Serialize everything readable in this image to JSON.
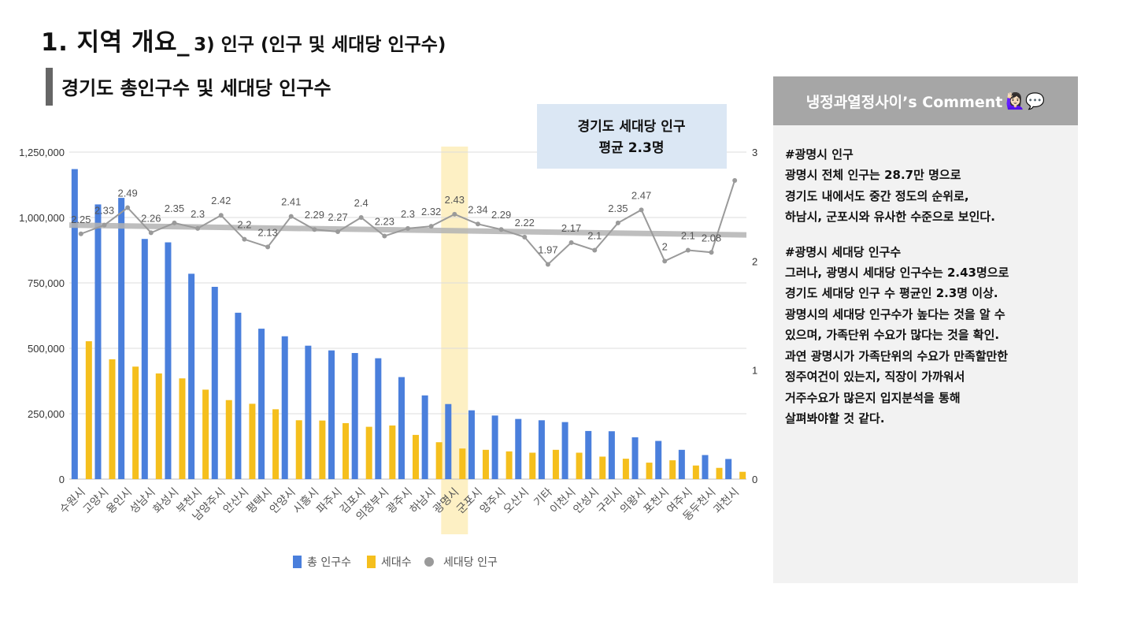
{
  "title": {
    "main": "1.  지역 개요_",
    "sub": "3) 인구 (인구 및 세대당 인구수)"
  },
  "section_title": "경기도 총인구수 및 세대당 인구수",
  "avg_box": {
    "line1": "경기도 세대당 인구",
    "line2": "평균 2.3명"
  },
  "comment": {
    "header": "냉정과열정사이’s Comment",
    "header_emoji": "🙋🏻‍♀️💬",
    "section1": {
      "heading": "#광명시 인구",
      "line1_pre": "광명시 전체 인구는 ",
      "line1_bold": "28.7만 명",
      "line1_post": "으로",
      "line2": "경기도 내에서도 중간 정도의 순위로,",
      "line3": "하남시, 군포시와 유사한 수준으로 보인다."
    },
    "section2": {
      "heading": "#광명시 세대당 인구수",
      "lines": [
        "그러나, 광명시 세대당 인구수는 2.43명으로",
        "경기도 세대당 인구 수 평균인 2.3명 이상.",
        "광명시의 세대당 인구수가 높다는 것을 알 수",
        "있으며, 가족단위 수요가 많다는 것을 확인.",
        "과연 광명시가 가족단위의 수요가 만족할만한",
        "정주여건이 있는지, 직장이 가까워서",
        "거주수요가 많은지 입지분석을 통해",
        "살펴봐야할 것 같다."
      ]
    }
  },
  "chart_data": {
    "type": "bar",
    "categories": [
      "수원시",
      "고양시",
      "용인시",
      "성남시",
      "화성시",
      "부천시",
      "남양주시",
      "안산시",
      "평택시",
      "안양시",
      "시흥시",
      "파주시",
      "김포시",
      "의정부시",
      "광주시",
      "하남시",
      "광명시",
      "군포시",
      "양주시",
      "오산시",
      "기타",
      "이천시",
      "안성시",
      "구리시",
      "의왕시",
      "포천시",
      "여주시",
      "동두천시",
      "과천시"
    ],
    "series": [
      {
        "name": "총 인구수",
        "axis": "left",
        "type": "bar",
        "color": "#4a7fdc",
        "values": [
          1185000,
          1050000,
          1075000,
          918000,
          905000,
          785000,
          735000,
          636000,
          575000,
          546000,
          510000,
          492000,
          482000,
          462000,
          390000,
          320000,
          287000,
          263000,
          243000,
          230000,
          225000,
          218000,
          184000,
          183000,
          160000,
          146000,
          112000,
          92000,
          77000
        ]
      },
      {
        "name": "세대수",
        "axis": "left",
        "type": "bar",
        "color": "#f5bf1d",
        "values": [
          527000,
          458000,
          430000,
          404000,
          385000,
          342000,
          302000,
          288000,
          267000,
          225000,
          224000,
          214000,
          200000,
          205000,
          169000,
          141000,
          117000,
          112000,
          106000,
          101000,
          112000,
          101000,
          86000,
          78000,
          63000,
          72000,
          52000,
          43000,
          28000
        ]
      },
      {
        "name": "세대당 인구",
        "axis": "right",
        "type": "line",
        "color": "#9a9a9a",
        "values": [
          2.25,
          2.33,
          2.49,
          2.26,
          2.35,
          2.3,
          2.42,
          2.2,
          2.13,
          2.41,
          2.29,
          2.27,
          2.4,
          2.23,
          2.3,
          2.32,
          2.43,
          2.34,
          2.29,
          2.22,
          1.97,
          2.17,
          2.1,
          2.35,
          2.47,
          2,
          2.1,
          2.08,
          2.74
        ],
        "labels": [
          "2.25",
          "2.33",
          "2.49",
          "2.26",
          "2.35",
          "2.3",
          "2.42",
          "2.2",
          "2.13",
          "2.41",
          "2.29",
          "2.27",
          "2.4",
          "2.23",
          "2.3",
          "2.32",
          "2.43",
          "2.34",
          "2.29",
          "2.22",
          "1.97",
          "2.17",
          "2.1",
          "2.35",
          "2.47",
          "2",
          "2.1",
          "2.08",
          ""
        ]
      }
    ],
    "trendline": {
      "start": 2.33,
      "end": 2.24,
      "color": "#b3b3b3"
    },
    "y_left": {
      "min": 0,
      "max": 1250000,
      "ticks": [
        "0",
        "250,000",
        "500,000",
        "750,000",
        "1,000,000",
        "1,250,000"
      ]
    },
    "y_right": {
      "min": 0,
      "max": 3,
      "ticks": [
        "0",
        "1",
        "2",
        "3"
      ]
    },
    "highlight_category": "광명시",
    "highlight_color": "#fdf0c4",
    "grid": true,
    "legend_position": "bottom"
  }
}
